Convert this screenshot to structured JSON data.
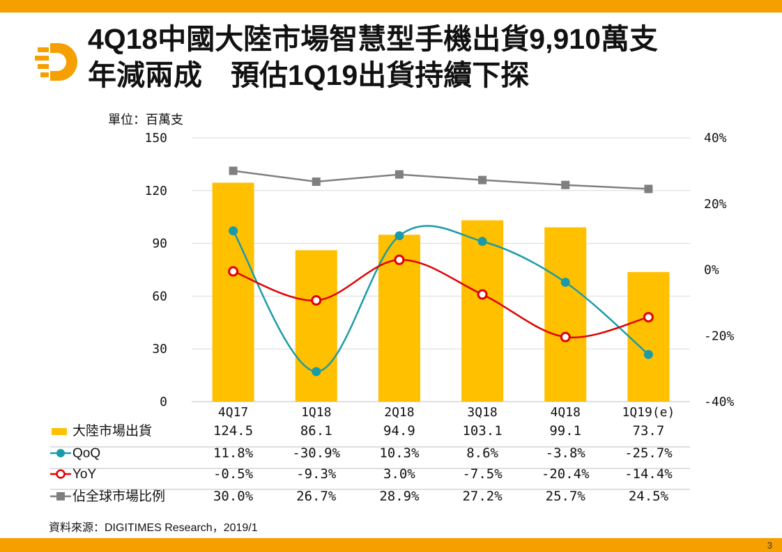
{
  "slide": {
    "title": "4Q18中國大陸市場智慧型手機出貨9,910萬支\n年減兩成　預估1Q19出貨持續下探",
    "unit": "單位：百萬支",
    "source": "資料來源：DIGITIMES Research，2019/1",
    "page_number": "3"
  },
  "colors": {
    "accent": "#F5A000",
    "bar": "#FFC000",
    "qoq": "#1A9BA8",
    "yoy": "#E00000",
    "share": "#7F7F7F",
    "grid": "#D9D9D9"
  },
  "chart_data": {
    "type": "bar",
    "categories": [
      "4Q17",
      "1Q18",
      "2Q18",
      "3Q18",
      "4Q18",
      "1Q19(e)"
    ],
    "ylim": [
      0,
      150
    ],
    "y_ticks": [
      "0",
      "30",
      "60",
      "90",
      "120",
      "150"
    ],
    "y2lim": [
      -40,
      40
    ],
    "y2_ticks": [
      "-40%",
      "-20%",
      "0%",
      "20%",
      "40%"
    ],
    "grid": true,
    "series": [
      {
        "name": "大陸市場出貨",
        "kind": "bar",
        "axis": "left",
        "values": [
          124.5,
          86.1,
          94.9,
          103.1,
          99.1,
          73.7
        ],
        "labels": [
          "124.5",
          "86.1",
          "94.9",
          "103.1",
          "99.1",
          "73.7"
        ]
      },
      {
        "name": "QoQ",
        "kind": "line",
        "axis": "right",
        "values": [
          11.8,
          -30.9,
          10.3,
          8.6,
          -3.8,
          -25.7
        ],
        "labels": [
          "11.8%",
          "-30.9%",
          "10.3%",
          "8.6%",
          "-3.8%",
          "-25.7%"
        ]
      },
      {
        "name": "YoY",
        "kind": "line",
        "axis": "right",
        "values": [
          -0.5,
          -9.3,
          3.0,
          -7.5,
          -20.4,
          -14.4
        ],
        "labels": [
          "-0.5%",
          "-9.3%",
          "3.0%",
          "-7.5%",
          "-20.4%",
          "-14.4%"
        ]
      },
      {
        "name": "佔全球市場比例",
        "kind": "line",
        "axis": "right",
        "values": [
          30.0,
          26.7,
          28.9,
          27.2,
          25.7,
          24.5
        ],
        "labels": [
          "30.0%",
          "26.7%",
          "28.9%",
          "27.2%",
          "25.7%",
          "24.5%"
        ]
      }
    ]
  }
}
